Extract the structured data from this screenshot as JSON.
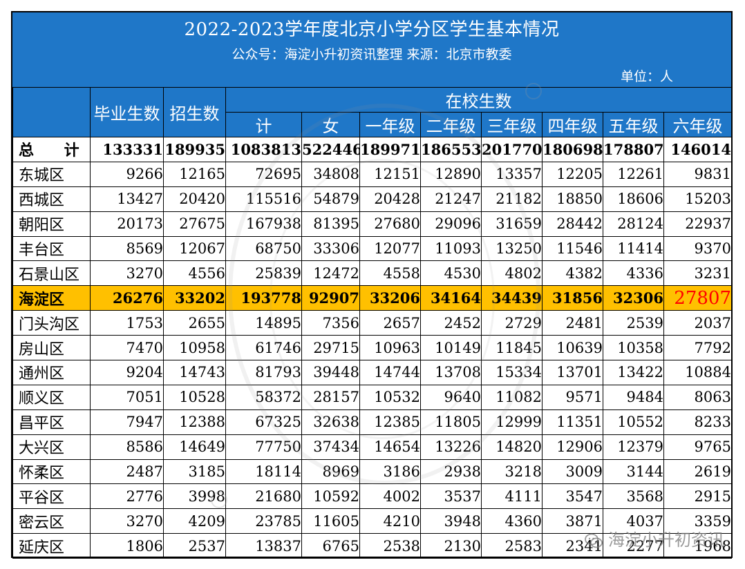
{
  "title": {
    "main": "2022-2023学年度北京小学分区学生基本情况",
    "sub": "公众号：海淀小升初资讯整理  来源：北京市教委",
    "unit": "单位：人"
  },
  "headers": {
    "graduates": "毕业生数",
    "enrollment": "招生数",
    "in_school": "在校生数",
    "sub": [
      "计",
      "女",
      "一年级",
      "二年级",
      "三年级",
      "四年级",
      "五年级",
      "六年级"
    ]
  },
  "rows": [
    {
      "name": "总  计",
      "values": [
        "133331",
        "189935",
        "1083813",
        "522446",
        "189971",
        "186553",
        "201770",
        "180698",
        "178807",
        "146014"
      ]
    },
    {
      "name": "东城区",
      "values": [
        "9266",
        "12165",
        "72695",
        "34808",
        "12151",
        "12890",
        "13357",
        "12205",
        "12261",
        "9831"
      ]
    },
    {
      "name": "西城区",
      "values": [
        "13427",
        "20420",
        "115516",
        "54879",
        "20428",
        "21247",
        "21182",
        "18850",
        "18606",
        "15203"
      ]
    },
    {
      "name": "朝阳区",
      "values": [
        "20173",
        "27675",
        "167938",
        "81395",
        "27680",
        "29096",
        "31659",
        "28442",
        "28124",
        "22937"
      ]
    },
    {
      "name": "丰台区",
      "values": [
        "8569",
        "12067",
        "68750",
        "33306",
        "12077",
        "11093",
        "13250",
        "11546",
        "11414",
        "9370"
      ]
    },
    {
      "name": "石景山区",
      "values": [
        "3270",
        "4556",
        "25839",
        "12472",
        "4558",
        "4530",
        "4802",
        "4382",
        "4336",
        "3231"
      ]
    },
    {
      "name": "海淀区",
      "values": [
        "26276",
        "33202",
        "193778",
        "92907",
        "33206",
        "34164",
        "34439",
        "31856",
        "32306",
        "27807"
      ]
    },
    {
      "name": "门头沟区",
      "values": [
        "1753",
        "2655",
        "14895",
        "7356",
        "2657",
        "2452",
        "2729",
        "2481",
        "2539",
        "2037"
      ]
    },
    {
      "name": "房山区",
      "values": [
        "7470",
        "10958",
        "61746",
        "29715",
        "10963",
        "10149",
        "11845",
        "10639",
        "10358",
        "7792"
      ]
    },
    {
      "name": "通州区",
      "values": [
        "9204",
        "14743",
        "81793",
        "39448",
        "14744",
        "13708",
        "15334",
        "13701",
        "13422",
        "10884"
      ]
    },
    {
      "name": "顺义区",
      "values": [
        "7051",
        "10528",
        "58372",
        "28157",
        "10532",
        "9640",
        "11082",
        "9571",
        "9484",
        "8063"
      ]
    },
    {
      "name": "昌平区",
      "values": [
        "7947",
        "12388",
        "67325",
        "32638",
        "12385",
        "11805",
        "12999",
        "11351",
        "10552",
        "8233"
      ]
    },
    {
      "name": "大兴区",
      "values": [
        "8586",
        "14649",
        "77750",
        "37434",
        "14654",
        "13226",
        "14820",
        "12906",
        "12379",
        "9765"
      ]
    },
    {
      "name": "怀柔区",
      "values": [
        "2487",
        "3185",
        "18114",
        "8969",
        "3186",
        "2938",
        "3218",
        "3009",
        "3144",
        "2619"
      ]
    },
    {
      "name": "平谷区",
      "values": [
        "2776",
        "3998",
        "21680",
        "10592",
        "4002",
        "3537",
        "4111",
        "3547",
        "3568",
        "2915"
      ]
    },
    {
      "name": "密云区",
      "values": [
        "3270",
        "4209",
        "23785",
        "11605",
        "4210",
        "3948",
        "4360",
        "3871",
        "4037",
        "3359"
      ]
    },
    {
      "name": "延庆区",
      "values": [
        "1806",
        "2537",
        "13837",
        "6765",
        "2538",
        "2130",
        "2583",
        "2341",
        "2277",
        "1968"
      ]
    }
  ],
  "footer_watermark": "海淀小升初资讯",
  "colors": {
    "header_blue": "#1f77c8",
    "highlight": "#ffc000",
    "red": "#ff0000"
  }
}
